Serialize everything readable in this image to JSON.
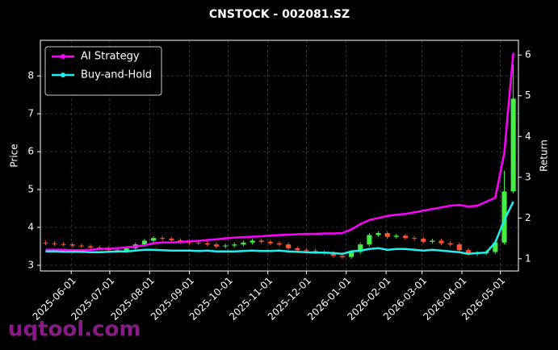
{
  "chart_data": {
    "type": "candlestick",
    "title": "CNSTOCK - 002081.SZ",
    "ylabel": "Price",
    "y2label": "Return",
    "watermark": "uqtool.com",
    "x": [
      "2025-05-12",
      "2025-05-19",
      "2025-05-26",
      "2025-06-02",
      "2025-06-09",
      "2025-06-16",
      "2025-06-23",
      "2025-06-30",
      "2025-07-07",
      "2025-07-14",
      "2025-07-21",
      "2025-07-28",
      "2025-08-04",
      "2025-08-11",
      "2025-08-18",
      "2025-08-25",
      "2025-09-01",
      "2025-09-08",
      "2025-09-15",
      "2025-09-22",
      "2025-09-29",
      "2025-10-06",
      "2025-10-13",
      "2025-10-20",
      "2025-10-27",
      "2025-11-03",
      "2025-11-10",
      "2025-11-17",
      "2025-11-24",
      "2025-12-01",
      "2025-12-08",
      "2025-12-15",
      "2025-12-22",
      "2025-12-29",
      "2026-01-05",
      "2026-01-12",
      "2026-01-19",
      "2026-01-26",
      "2026-02-02",
      "2026-02-09",
      "2026-02-16",
      "2026-02-23",
      "2026-03-02",
      "2026-03-09",
      "2026-03-16",
      "2026-03-23",
      "2026-03-30",
      "2026-04-06",
      "2026-04-13",
      "2026-04-20",
      "2026-04-27",
      "2026-05-04",
      "2026-05-11"
    ],
    "open": [
      3.6,
      3.58,
      3.56,
      3.55,
      3.52,
      3.5,
      3.47,
      3.45,
      3.4,
      3.38,
      3.45,
      3.55,
      3.65,
      3.72,
      3.7,
      3.66,
      3.62,
      3.6,
      3.58,
      3.55,
      3.5,
      3.52,
      3.55,
      3.6,
      3.65,
      3.62,
      3.58,
      3.55,
      3.45,
      3.4,
      3.38,
      3.35,
      3.32,
      3.25,
      3.22,
      3.35,
      3.55,
      3.8,
      3.85,
      3.75,
      3.78,
      3.72,
      3.7,
      3.62,
      3.65,
      3.58,
      3.55,
      3.4,
      3.3,
      3.32,
      3.35,
      3.6,
      4.95
    ],
    "high": [
      3.65,
      3.63,
      3.61,
      3.6,
      3.57,
      3.55,
      3.52,
      3.5,
      3.45,
      3.5,
      3.6,
      3.7,
      3.77,
      3.77,
      3.75,
      3.71,
      3.67,
      3.65,
      3.63,
      3.6,
      3.57,
      3.6,
      3.65,
      3.7,
      3.7,
      3.67,
      3.63,
      3.6,
      3.5,
      3.45,
      3.43,
      3.4,
      3.37,
      3.3,
      3.4,
      3.6,
      3.85,
      3.9,
      3.9,
      3.83,
      3.83,
      3.77,
      3.75,
      3.7,
      3.7,
      3.63,
      3.6,
      3.45,
      3.37,
      3.4,
      3.65,
      5.5,
      8.3
    ],
    "low": [
      3.53,
      3.51,
      3.5,
      3.47,
      3.45,
      3.42,
      3.4,
      3.35,
      3.33,
      3.33,
      3.4,
      3.5,
      3.6,
      3.65,
      3.61,
      3.57,
      3.55,
      3.53,
      3.5,
      3.45,
      3.45,
      3.47,
      3.5,
      3.55,
      3.57,
      3.53,
      3.5,
      3.4,
      3.35,
      3.33,
      3.3,
      3.27,
      3.2,
      3.17,
      3.17,
      3.3,
      3.5,
      3.75,
      3.7,
      3.7,
      3.67,
      3.65,
      3.57,
      3.57,
      3.53,
      3.5,
      3.35,
      3.25,
      3.25,
      3.27,
      3.3,
      3.55,
      4.9
    ],
    "close": [
      3.58,
      3.56,
      3.55,
      3.52,
      3.5,
      3.47,
      3.45,
      3.4,
      3.38,
      3.45,
      3.55,
      3.65,
      3.72,
      3.7,
      3.66,
      3.62,
      3.6,
      3.58,
      3.55,
      3.5,
      3.52,
      3.55,
      3.6,
      3.65,
      3.62,
      3.58,
      3.55,
      3.45,
      3.4,
      3.38,
      3.35,
      3.32,
      3.25,
      3.22,
      3.35,
      3.55,
      3.8,
      3.85,
      3.75,
      3.78,
      3.72,
      3.7,
      3.62,
      3.65,
      3.58,
      3.55,
      3.4,
      3.3,
      3.32,
      3.35,
      3.6,
      4.95,
      7.4
    ],
    "up_color": "#44ee44",
    "down_color": "#ff5533",
    "series": [
      {
        "name": "AI Strategy",
        "color": "#ff00ff",
        "axis": "y2",
        "values": [
          1.22,
          1.22,
          1.22,
          1.21,
          1.21,
          1.22,
          1.24,
          1.25,
          1.26,
          1.28,
          1.3,
          1.33,
          1.38,
          1.4,
          1.4,
          1.41,
          1.43,
          1.44,
          1.46,
          1.48,
          1.5,
          1.52,
          1.53,
          1.54,
          1.55,
          1.57,
          1.58,
          1.59,
          1.6,
          1.61,
          1.61,
          1.62,
          1.62,
          1.63,
          1.72,
          1.85,
          1.95,
          2.0,
          2.05,
          2.08,
          2.1,
          2.14,
          2.18,
          2.22,
          2.26,
          2.3,
          2.32,
          2.28,
          2.3,
          2.4,
          2.5,
          3.6,
          6.05
        ]
      },
      {
        "name": "Buy-and-Hold",
        "color": "#22eeee",
        "axis": "y2",
        "values": [
          1.18,
          1.18,
          1.17,
          1.17,
          1.17,
          1.16,
          1.16,
          1.17,
          1.18,
          1.18,
          1.2,
          1.22,
          1.22,
          1.21,
          1.2,
          1.2,
          1.2,
          1.19,
          1.2,
          1.18,
          1.18,
          1.18,
          1.19,
          1.2,
          1.19,
          1.19,
          1.2,
          1.18,
          1.17,
          1.16,
          1.15,
          1.15,
          1.14,
          1.12,
          1.18,
          1.2,
          1.24,
          1.26,
          1.22,
          1.24,
          1.24,
          1.22,
          1.2,
          1.22,
          1.2,
          1.18,
          1.16,
          1.12,
          1.14,
          1.15,
          1.4,
          1.95,
          2.4
        ]
      }
    ],
    "xlim": [
      "2025-05-08",
      "2026-05-15"
    ],
    "xticks": [
      "2025-06-01",
      "2025-07-01",
      "2025-08-01",
      "2025-09-01",
      "2025-10-01",
      "2025-11-01",
      "2025-12-01",
      "2026-01-01",
      "2026-02-01",
      "2026-03-01",
      "2026-04-01",
      "2026-05-01"
    ],
    "ylim": [
      2.85,
      8.94
    ],
    "yticks": [
      3,
      4,
      5,
      6,
      7,
      8
    ],
    "y2lim": [
      0.7,
      6.36
    ],
    "y2ticks": [
      1,
      2,
      3,
      4,
      5,
      6
    ],
    "grid": true,
    "legend": "upper left"
  }
}
